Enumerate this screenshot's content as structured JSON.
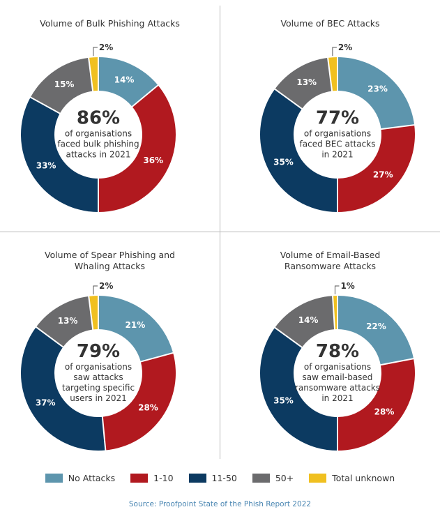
{
  "legend": {
    "items": [
      {
        "label": "No Attacks",
        "color": "#5d95ad"
      },
      {
        "label": "1-10",
        "color": "#b1191f"
      },
      {
        "label": "11-50",
        "color": "#0c3a61"
      },
      {
        "label": "50+",
        "color": "#6b6b6d"
      },
      {
        "label": "Total unknown",
        "color": "#f0c020"
      }
    ]
  },
  "source": "Source: Proofpoint State of the Phish Report 2022",
  "chart_data": [
    {
      "type": "pie",
      "title": "Volume of Bulk Phishing Attacks",
      "categories": [
        "No Attacks",
        "1-10",
        "11-50",
        "50+",
        "Total unknown"
      ],
      "values": [
        14,
        36,
        33,
        15,
        2
      ],
      "labels": [
        "14%",
        "36%",
        "33%",
        "15%",
        "2%"
      ],
      "center_value": "86%",
      "center_text": [
        "of organisations",
        "faced bulk phishing",
        "attacks in 2021"
      ]
    },
    {
      "type": "pie",
      "title": "Volume of BEC Attacks",
      "categories": [
        "No Attacks",
        "1-10",
        "11-50",
        "50+",
        "Total unknown"
      ],
      "values": [
        23,
        27,
        35,
        13,
        2
      ],
      "labels": [
        "23%",
        "27%",
        "35%",
        "13%",
        "2%"
      ],
      "center_value": "77%",
      "center_text": [
        "of organisations",
        "faced BEC attacks",
        "in 2021"
      ]
    },
    {
      "type": "pie",
      "title": "Volume of Spear Phishing and\nWhaling Attacks",
      "categories": [
        "No Attacks",
        "1-10",
        "11-50",
        "50+",
        "Total unknown"
      ],
      "values": [
        21,
        28,
        37,
        13,
        2
      ],
      "labels": [
        "21%",
        "28%",
        "37%",
        "13%",
        "2%"
      ],
      "center_value": "79%",
      "center_text": [
        "of organisations",
        "saw attacks",
        "targeting specific",
        "users in 2021"
      ]
    },
    {
      "type": "pie",
      "title": "Volume of Email-Based\nRansomware Attacks",
      "categories": [
        "No Attacks",
        "1-10",
        "11-50",
        "50+",
        "Total unknown"
      ],
      "values": [
        22,
        28,
        35,
        14,
        1
      ],
      "labels": [
        "22%",
        "28%",
        "35%",
        "14%",
        "1%"
      ],
      "center_value": "78%",
      "center_text": [
        "of organisations",
        "saw email-based",
        "ransomware attacks",
        "in 2021"
      ]
    }
  ]
}
